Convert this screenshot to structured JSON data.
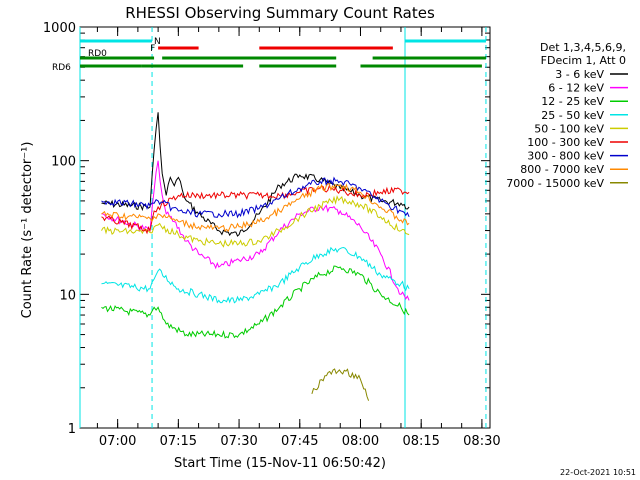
{
  "chart_data": {
    "type": "line",
    "title": "RHESSI Observing Summary Count Rates",
    "xlabel": "Start Time (15-Nov-11 06:50:42)",
    "ylabel": "Count Rate (s⁻¹ detector⁻¹)",
    "y_scale": "log",
    "ylim": [
      1,
      1000
    ],
    "y_ticks": [
      1,
      10,
      100,
      1000
    ],
    "y_tick_labels": [
      "1",
      "10",
      "100",
      "1000"
    ],
    "xlim": [
      "06:50:42",
      "08:32:00"
    ],
    "x_ticks": [
      "07:00",
      "07:15",
      "07:30",
      "07:45",
      "08:00",
      "08:15",
      "08:30"
    ],
    "legend_header": [
      "Det 1,3,4,5,6,9,",
      "FDecim 1, Att 0"
    ],
    "legend_position": "right",
    "footer_date": "22-Oct-2021 10:51",
    "series": [
      {
        "name": "3 - 6 keV",
        "color": "#000000",
        "x": [
          "06:56",
          "07:08",
          "07:09",
          "07:10",
          "07:11",
          "07:12",
          "07:13",
          "07:14",
          "07:15",
          "07:16",
          "07:17",
          "07:20",
          "07:25",
          "07:30",
          "07:35",
          "07:40",
          "07:45",
          "07:50",
          "07:55",
          "08:00",
          "08:05",
          "08:10",
          "08:12"
        ],
        "y": [
          48,
          45,
          120,
          230,
          80,
          55,
          75,
          65,
          75,
          60,
          50,
          40,
          30,
          28,
          40,
          65,
          78,
          72,
          62,
          55,
          50,
          48,
          45
        ]
      },
      {
        "name": "6 - 12 keV",
        "color": "#ff00ff",
        "x": [
          "06:56",
          "07:08",
          "07:09",
          "07:10",
          "07:11",
          "07:12",
          "07:14",
          "07:17",
          "07:20",
          "07:25",
          "07:30",
          "07:35",
          "07:40",
          "07:45",
          "07:50",
          "07:55",
          "08:00",
          "08:05",
          "08:10",
          "08:12"
        ],
        "y": [
          40,
          30,
          60,
          100,
          55,
          40,
          35,
          25,
          20,
          16,
          18,
          20,
          30,
          40,
          45,
          42,
          32,
          20,
          10,
          9
        ]
      },
      {
        "name": "12 - 25 keV",
        "color": "#00cc00",
        "x": [
          "06:56",
          "07:08",
          "07:09",
          "07:10",
          "07:12",
          "07:17",
          "07:25",
          "07:30",
          "07:35",
          "07:40",
          "07:45",
          "07:50",
          "07:55",
          "08:00",
          "08:05",
          "08:10",
          "08:12"
        ],
        "y": [
          8,
          7,
          8,
          8,
          6,
          5,
          5,
          5,
          6,
          8,
          11,
          14,
          16,
          14,
          10,
          8,
          7
        ]
      },
      {
        "name": "25 - 50 keV",
        "color": "#00e5e5",
        "x": [
          "06:56",
          "07:08",
          "07:09",
          "07:10",
          "07:15",
          "07:20",
          "07:25",
          "07:30",
          "07:35",
          "07:40",
          "07:45",
          "07:50",
          "07:55",
          "08:00",
          "08:05",
          "08:10",
          "08:12"
        ],
        "y": [
          12,
          11,
          13,
          15,
          11,
          10,
          9,
          9,
          10,
          12,
          16,
          20,
          22,
          19,
          14,
          12,
          11
        ]
      },
      {
        "name": "50 - 100 keV",
        "color": "#cccc00",
        "x": [
          "06:56",
          "07:08",
          "07:09",
          "07:10",
          "07:15",
          "07:20",
          "07:25",
          "07:30",
          "07:35",
          "07:40",
          "07:45",
          "07:50",
          "07:55",
          "08:00",
          "08:05",
          "08:10",
          "08:12"
        ],
        "y": [
          30,
          29,
          32,
          33,
          28,
          25,
          24,
          24,
          25,
          30,
          38,
          46,
          52,
          47,
          38,
          30,
          28
        ]
      },
      {
        "name": "100 - 300 keV",
        "color": "#ee0000",
        "x": [
          "06:56",
          "07:08",
          "07:09",
          "07:10",
          "07:15",
          "07:20",
          "07:25",
          "07:30",
          "07:35",
          "07:40",
          "07:45",
          "07:50",
          "07:55",
          "08:00",
          "08:05",
          "08:10",
          "08:12"
        ],
        "y": [
          38,
          30,
          42,
          45,
          55,
          55,
          55,
          55,
          55,
          55,
          58,
          62,
          60,
          55,
          58,
          60,
          58
        ]
      },
      {
        "name": "300 - 800 keV",
        "color": "#0000cc",
        "x": [
          "06:56",
          "07:08",
          "07:09",
          "07:10",
          "07:15",
          "07:20",
          "07:25",
          "07:30",
          "07:35",
          "07:40",
          "07:45",
          "07:50",
          "07:55",
          "08:00",
          "08:05",
          "08:10",
          "08:12"
        ],
        "y": [
          50,
          46,
          48,
          50,
          42,
          40,
          40,
          40,
          44,
          52,
          62,
          70,
          70,
          62,
          50,
          42,
          38
        ]
      },
      {
        "name": "800 - 7000 keV",
        "color": "#ff8800",
        "x": [
          "06:56",
          "07:08",
          "07:09",
          "07:10",
          "07:15",
          "07:20",
          "07:25",
          "07:30",
          "07:35",
          "07:40",
          "07:45",
          "07:50",
          "07:55",
          "08:00",
          "08:05",
          "08:10",
          "08:12"
        ],
        "y": [
          40,
          37,
          38,
          40,
          35,
          32,
          31,
          32,
          35,
          42,
          52,
          62,
          66,
          58,
          45,
          36,
          34
        ]
      },
      {
        "name": "7000 - 15000 keV",
        "color": "#888800",
        "x": [
          "07:48",
          "07:52",
          "07:56",
          "08:00",
          "08:02"
        ],
        "y": [
          1.8,
          2.6,
          2.7,
          2.3,
          1.6
        ]
      }
    ],
    "state_bars": [
      {
        "label": "N",
        "color": "#00e5e5",
        "segments": [
          [
            "06:50:42",
            "07:08:30"
          ],
          [
            "08:11",
            "08:31"
          ]
        ]
      },
      {
        "label": "F",
        "color": "#ee0000",
        "segments": [
          [
            "07:10",
            "07:20"
          ],
          [
            "07:35",
            "08:08"
          ]
        ]
      },
      {
        "label": "RD0",
        "color": "#008800",
        "segments": [
          [
            "06:50:42",
            "07:09"
          ],
          [
            "07:11",
            "07:54"
          ],
          [
            "08:03",
            "08:31"
          ]
        ]
      },
      {
        "label": "RD6",
        "color": "#008800",
        "segments": [
          [
            "06:50:42",
            "07:06"
          ],
          [
            "07:06",
            "07:31"
          ],
          [
            "07:35",
            "07:54"
          ],
          [
            "08:00",
            "08:30"
          ]
        ]
      }
    ],
    "markers": [
      {
        "time": "06:50:42",
        "color": "#00e5e5",
        "style": "solid"
      },
      {
        "time": "07:08:30",
        "color": "#00e5e5",
        "style": "dashed"
      },
      {
        "time": "08:11",
        "color": "#00e5e5",
        "style": "solid"
      },
      {
        "time": "08:31",
        "color": "#00e5e5",
        "style": "dashed"
      }
    ]
  }
}
